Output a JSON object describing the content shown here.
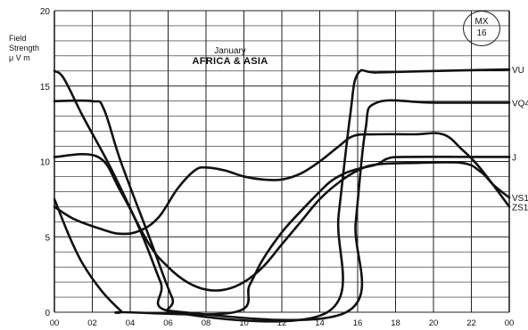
{
  "chart_data": {
    "type": "line",
    "title": "AFRICA & ASIA",
    "subtitle": "January",
    "ylabel_lines": [
      "Field",
      "Strength",
      "μ V m"
    ],
    "badge_lines": [
      "MX",
      "16"
    ],
    "xlim": [
      0,
      24
    ],
    "ylim": [
      0,
      20
    ],
    "x_ticks": [
      "00",
      "02",
      "04",
      "06",
      "08",
      "10",
      "12",
      "14",
      "16",
      "18",
      "20",
      "22",
      "00"
    ],
    "y_ticks": [
      "0",
      "5",
      "10",
      "15",
      "20"
    ],
    "grid": true,
    "series": [
      {
        "name": "VU",
        "x": [
          0,
          0.5,
          1.5,
          3,
          4.5,
          5.6,
          6.3,
          14.4,
          15,
          15.6,
          16,
          17,
          20,
          24
        ],
        "y": [
          16,
          15.5,
          13,
          9.5,
          5.5,
          2,
          0,
          0,
          6.5,
          13,
          15.8,
          15.9,
          16,
          16.1
        ]
      },
      {
        "name": "VQ4",
        "x": [
          0,
          2,
          2.6,
          3.5,
          5,
          6.2,
          6.8,
          15.4,
          15.9,
          16.4,
          17,
          20,
          24
        ],
        "y": [
          14,
          14,
          13.5,
          10,
          5,
          1,
          0,
          0,
          6,
          12,
          13.9,
          13.9,
          13.9
        ]
      },
      {
        "name": "ZS1",
        "x": [
          0,
          1,
          2.5,
          3.5,
          4.5,
          5.5,
          6.5,
          7.4,
          8,
          9,
          10,
          11,
          12,
          13,
          14,
          15,
          15.8,
          17,
          19,
          20.5,
          21.5,
          22.5,
          24
        ],
        "y": [
          7,
          6.2,
          5.5,
          5.2,
          5.4,
          6.3,
          8.2,
          9.4,
          9.6,
          9.4,
          9,
          8.8,
          8.8,
          9.2,
          10,
          11,
          11.7,
          11.8,
          11.8,
          11.8,
          10.8,
          9.5,
          7
        ]
      },
      {
        "name": "VS1",
        "x": [
          0,
          2.3,
          3.5,
          5,
          6,
          7,
          8,
          9,
          10,
          11,
          12,
          13,
          14,
          15,
          16,
          17,
          19,
          21.5,
          22.5,
          23.2,
          24
        ],
        "y": [
          10.3,
          10.3,
          8,
          4.5,
          3,
          2,
          1.5,
          1.5,
          2,
          3,
          4.5,
          6,
          7.5,
          8.6,
          9.4,
          9.8,
          9.9,
          9.9,
          9.3,
          8.4,
          7.6
        ]
      },
      {
        "name": "J",
        "x": [
          0,
          0.8,
          1.5,
          2.5,
          3.5,
          3.7,
          9.5,
          10.3,
          11,
          12,
          13,
          14,
          14.6,
          15.3,
          16,
          17,
          17.6,
          18.5,
          22,
          24
        ],
        "y": [
          7.5,
          5,
          3.2,
          1.4,
          0.1,
          0,
          0,
          1.8,
          3.5,
          5.3,
          6.7,
          8,
          8.7,
          9.2,
          9.5,
          9.8,
          10.2,
          10.3,
          10.3,
          10.3
        ]
      }
    ]
  },
  "colors": {
    "line": "#111111",
    "grid": "#222222",
    "background": "#ffffff"
  }
}
